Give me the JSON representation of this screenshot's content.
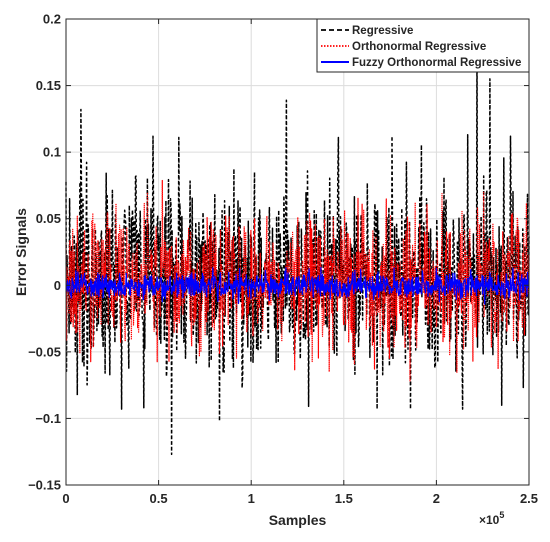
{
  "chart_data": {
    "type": "line",
    "title": "",
    "xlabel": "Samples",
    "ylabel": "Error Signals",
    "x_exponent_label": "×10",
    "x_exponent_power": "5",
    "xlim": [
      0,
      250000
    ],
    "ylim": [
      -0.15,
      0.2
    ],
    "grid": true,
    "legend_position": "top-right",
    "x_ticks": [
      0,
      50000,
      100000,
      150000,
      200000,
      250000
    ],
    "x_tick_labels": [
      "0",
      "0.5",
      "1",
      "1.5",
      "2",
      "2.5"
    ],
    "y_ticks": [
      -0.15,
      -0.1,
      -0.05,
      0,
      0.05,
      0.1,
      0.15,
      0.2
    ],
    "y_tick_labels": [
      "−0.15",
      "−0.1",
      "−0.05",
      "0",
      "0.05",
      "0.1",
      "0.15",
      "0.2"
    ],
    "series": [
      {
        "name": "Regressive",
        "color": "#000000",
        "line_style": "dashed",
        "typical_envelope": [
          -0.06,
          0.07
        ],
        "peaks": [
          {
            "x": 8000,
            "y": 0.132
          },
          {
            "x": 47000,
            "y": 0.112
          },
          {
            "x": 61000,
            "y": 0.111
          },
          {
            "x": 119000,
            "y": 0.139
          },
          {
            "x": 147000,
            "y": 0.111
          },
          {
            "x": 176000,
            "y": 0.112
          },
          {
            "x": 217000,
            "y": 0.113
          },
          {
            "x": 222000,
            "y": 0.185
          },
          {
            "x": 229000,
            "y": 0.155
          },
          {
            "x": 240000,
            "y": 0.112
          },
          {
            "x": 57000,
            "y": -0.127
          },
          {
            "x": 30000,
            "y": -0.093
          },
          {
            "x": 42000,
            "y": -0.092
          },
          {
            "x": 83000,
            "y": -0.102
          },
          {
            "x": 131000,
            "y": -0.091
          },
          {
            "x": 168000,
            "y": -0.093
          },
          {
            "x": 186000,
            "y": -0.093
          },
          {
            "x": 214000,
            "y": -0.093
          }
        ]
      },
      {
        "name": "Orthonormal Regressive",
        "color": "#ff0000",
        "line_style": "dotted",
        "typical_envelope": [
          -0.045,
          0.048
        ]
      },
      {
        "name": "Fuzzy Orthonormal Regressive",
        "color": "#0000ff",
        "line_style": "solid",
        "typical_envelope": [
          -0.009,
          0.009
        ]
      }
    ]
  }
}
